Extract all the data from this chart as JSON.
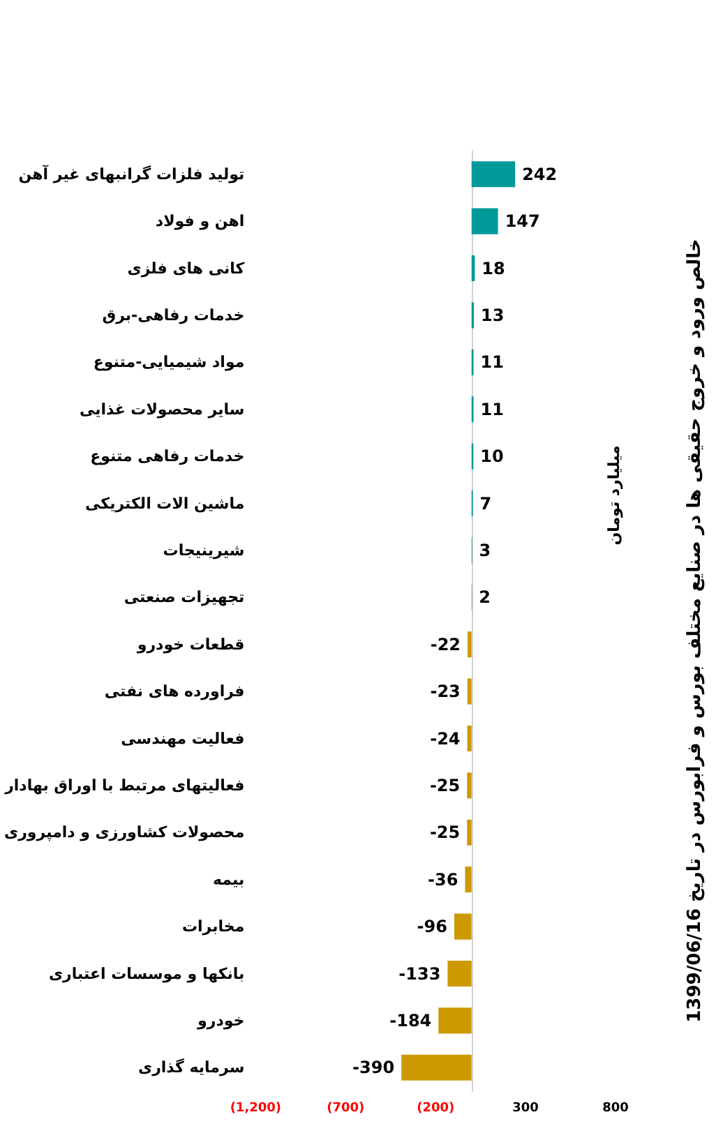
{
  "chart_data": {
    "type": "bar",
    "orientation": "horizontal",
    "title": "خالص ورود و خروج حقیقی ها در صنایع مختلف بورس و فرابورس در تاریخ 1399/06/16",
    "ylabel": "میلیارد تومان",
    "categories": [
      "تولید فلزات گرانبهای غیر آهن",
      "اهن و فولاد",
      "کانی های فلزی",
      "خدمات رفاهی-برق",
      "مواد شیمیایی-متنوع",
      "سایر محصولات غذایی",
      "خدمات رفاهی متنوع",
      "ماشین الات الکتریکی",
      "شیرینیجات",
      "تجهیزات صنعتی",
      "قطعات خودرو",
      "فراورده های نفتی",
      "فعالیت مهندسی",
      "فعالیتهای مرتبط با اوراق بهادار",
      "محصولات کشاورزی و دامپروری",
      "بیمه",
      "مخابرات",
      "بانکها و موسسات اعتباری",
      "خودرو",
      "سرمایه گذاری"
    ],
    "values": [
      242,
      147,
      18,
      13,
      11,
      11,
      10,
      7,
      3,
      2,
      -22,
      -23,
      -24,
      -25,
      -25,
      -36,
      -96,
      -133,
      -184,
      -390
    ],
    "colors": [
      "#009999",
      "#009999",
      "#009999",
      "#009999",
      "#009999",
      "#009999",
      "#009999",
      "#009999",
      "#009999",
      "#009999",
      "#cc9900",
      "#cc9900",
      "#cc9900",
      "#cc9900",
      "#cc9900",
      "#cc9900",
      "#cc9900",
      "#cc9900",
      "#cc9900",
      "#cc9900"
    ],
    "xlim": [
      -1200,
      800
    ],
    "xticks": [
      {
        "value": -1200,
        "label": "(1,200)"
      },
      {
        "value": -700,
        "label": "(700)"
      },
      {
        "value": -200,
        "label": "(200)"
      },
      300,
      800
    ],
    "data_labels": true,
    "grid": false
  }
}
